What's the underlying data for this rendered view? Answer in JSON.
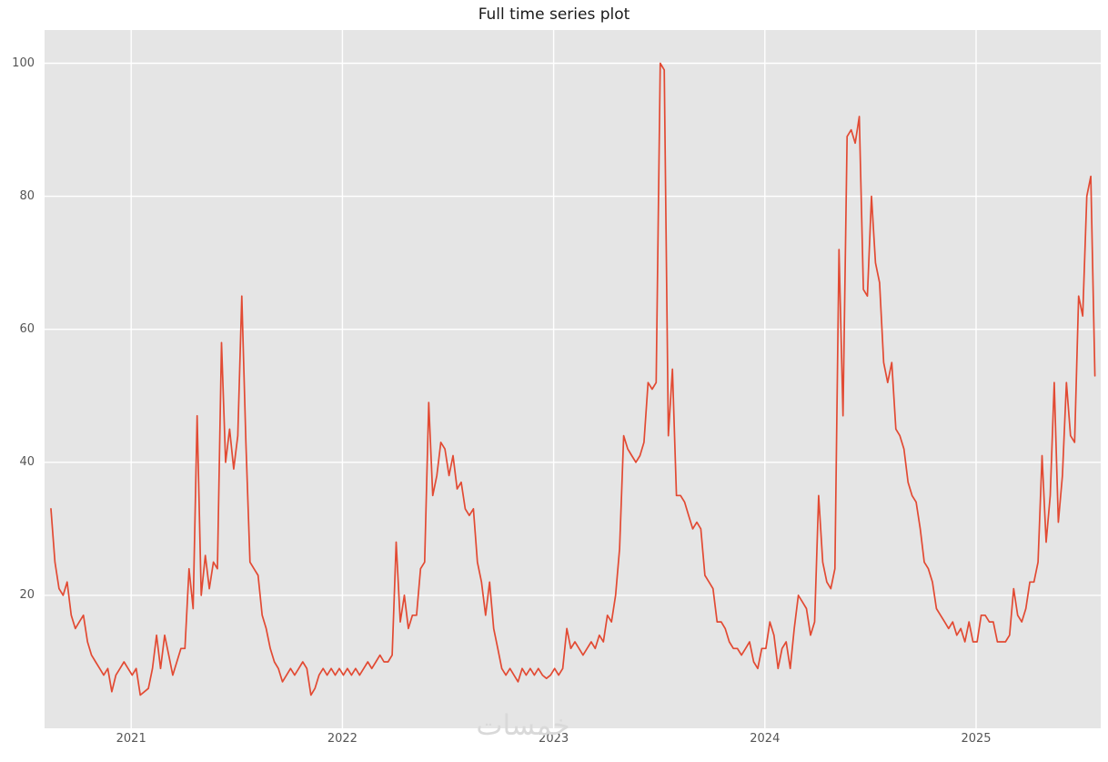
{
  "title": "Full time series plot",
  "watermark": "خمسات",
  "colors": {
    "line": "#E24A33",
    "plot_bg": "#E5E5E5",
    "grid": "#FFFFFF",
    "tick": "#555555",
    "title": "#1A1A1A",
    "page_bg": "#FFFFFF"
  },
  "chart_data": {
    "type": "line",
    "title": "Full time series plot",
    "xlabel": "",
    "ylabel": "",
    "grid": true,
    "legend": "none",
    "xlim": [
      2020.59,
      2025.59
    ],
    "ylim": [
      0,
      105
    ],
    "x_ticks": [
      2021,
      2022,
      2023,
      2024,
      2025
    ],
    "y_ticks": [
      20,
      40,
      60,
      80,
      100
    ],
    "x_start": 2020.62,
    "x_step_years": 0.019231,
    "frequency": "weekly",
    "series": [
      {
        "name": "value",
        "color": "#E24A33",
        "values": [
          33,
          25,
          21,
          20,
          22,
          17,
          15,
          16,
          17,
          13,
          11,
          10,
          9,
          8,
          9,
          5.5,
          8,
          9,
          10,
          9,
          8,
          9,
          5,
          5.5,
          6,
          9,
          14,
          9,
          14,
          11,
          8,
          10,
          12,
          12,
          24,
          18,
          47,
          20,
          26,
          21,
          25,
          24,
          58,
          40,
          45,
          39,
          44,
          65,
          43,
          25,
          24,
          23,
          17,
          15,
          12,
          10,
          9,
          7,
          8,
          9,
          8,
          9,
          10,
          9,
          5,
          6,
          8,
          9,
          8,
          9,
          8,
          9,
          8,
          9,
          8,
          9,
          8,
          9,
          10,
          9,
          10,
          11,
          10,
          10,
          11,
          28,
          16,
          20,
          15,
          17,
          17,
          24,
          25,
          49,
          35,
          38,
          43,
          42,
          38,
          41,
          36,
          37,
          33,
          32,
          33,
          25,
          22,
          17,
          22,
          15,
          12,
          9,
          8,
          9,
          8,
          7,
          9,
          8,
          9,
          8,
          9,
          8,
          7.5,
          8,
          9,
          8,
          9,
          15,
          12,
          13,
          12,
          11,
          12,
          13,
          12,
          14,
          13,
          17,
          16,
          20,
          27,
          44,
          42,
          41,
          40,
          41,
          43,
          52,
          51,
          52,
          100,
          99,
          44,
          54,
          35,
          35,
          34,
          32,
          30,
          31,
          30,
          23,
          22,
          21,
          16,
          16,
          15,
          13,
          12,
          12,
          11,
          12,
          13,
          10,
          9,
          12,
          12,
          16,
          14,
          9,
          12,
          13,
          9,
          15,
          20,
          19,
          18,
          14,
          16,
          35,
          25,
          22,
          21,
          24,
          72,
          47,
          89,
          90,
          88,
          92,
          66,
          65,
          80,
          70,
          67,
          55,
          52,
          55,
          45,
          44,
          42,
          37,
          35,
          34,
          30,
          25,
          24,
          22,
          18,
          17,
          16,
          15,
          16,
          14,
          15,
          13,
          16,
          13,
          13,
          17,
          17,
          16,
          16,
          13,
          13,
          13,
          14,
          21,
          17,
          16,
          18,
          22,
          22,
          25,
          41,
          28,
          35,
          52,
          31,
          38,
          52,
          44,
          43,
          65,
          62,
          80,
          83,
          53
        ]
      }
    ]
  }
}
